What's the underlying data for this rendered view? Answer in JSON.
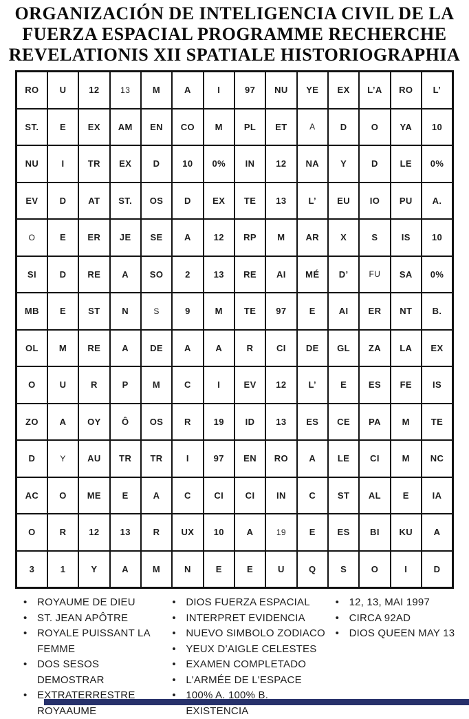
{
  "title": {
    "lines": [
      "ORGANIZACIÓN DE INTELIGENCIA CIVIL DE LA",
      "FUERZA ESPACIAL PROGRAMME RECHERCHE",
      "REVELATIONIS XII SPATIALE HISTORIOGRAPHIA"
    ]
  },
  "grid": {
    "rows": [
      [
        "RO",
        "U",
        "12",
        "13",
        "M",
        "A",
        "I",
        "97",
        "NU",
        "YE",
        "EX",
        "L’A",
        "RO",
        "L’"
      ],
      [
        "ST.",
        "E",
        "EX",
        "AM",
        "EN",
        "CO",
        "M",
        "PL",
        "ET",
        "A",
        "D",
        "O",
        "YA",
        "10"
      ],
      [
        "NU",
        "I",
        "TR",
        "EX",
        "D",
        "10",
        "0%",
        "IN",
        "12",
        "NA",
        "Y",
        "D",
        "LE",
        "0%"
      ],
      [
        "EV",
        "D",
        "AT",
        "ST.",
        "OS",
        "D",
        "EX",
        "TE",
        "13",
        "L’",
        "EU",
        "IO",
        "PU",
        "A."
      ],
      [
        "O",
        "E",
        "ER",
        "JE",
        "SE",
        "A",
        "12",
        "RP",
        "M",
        "AR",
        "X",
        "S",
        "IS",
        "10"
      ],
      [
        "SI",
        "D",
        "RE",
        "A",
        "SO",
        "2",
        "13",
        "RE",
        "AI",
        "MÉ",
        "D’",
        "FU",
        "SA",
        "0%"
      ],
      [
        "MB",
        "E",
        "ST",
        "N",
        "S",
        "9",
        "M",
        "TE",
        "97",
        "E",
        "AI",
        "ER",
        "NT",
        "B."
      ],
      [
        "OL",
        "M",
        "RE",
        "A",
        "DE",
        "A",
        "A",
        "R",
        "CI",
        "DE",
        "GL",
        "ZA",
        "LA",
        "EX"
      ],
      [
        "O",
        "U",
        "R",
        "P",
        "M",
        "C",
        "I",
        "EV",
        "12",
        "L’",
        "E",
        "ES",
        "FE",
        "IS"
      ],
      [
        "ZO",
        "A",
        "OY",
        "Ô",
        "OS",
        "R",
        "19",
        "ID",
        "13",
        "ES",
        "CE",
        "PA",
        "M",
        "TE"
      ],
      [
        "D",
        "Y",
        "AU",
        "TR",
        "TR",
        "I",
        "97",
        "EN",
        "RO",
        "A",
        "LE",
        "CI",
        "M",
        "NC"
      ],
      [
        "AC",
        "O",
        "ME",
        "E",
        "A",
        "C",
        "CI",
        "CI",
        "IN",
        "C",
        "ST",
        "AL",
        "E",
        "IA"
      ],
      [
        "O",
        "R",
        "12",
        "13",
        "R",
        "UX",
        "10",
        "A",
        "19",
        "E",
        "ES",
        "BI",
        "KU",
        "A"
      ],
      [
        "3",
        "1",
        "Y",
        "A",
        "M",
        "N",
        "E",
        "E",
        "U",
        "Q",
        "S",
        "O",
        "I",
        "D"
      ]
    ],
    "light_cells": [
      [
        0,
        3
      ],
      [
        1,
        9
      ],
      [
        4,
        0
      ],
      [
        5,
        11
      ],
      [
        6,
        4
      ],
      [
        10,
        1
      ],
      [
        12,
        8
      ]
    ]
  },
  "legend": {
    "bullet_glyph": "•",
    "columns": [
      {
        "items": [
          "ROYAUME DE DIEU",
          "ST. JEAN APÔTRE",
          "ROYALE PUISSANT LA FEMME",
          "DOS SESOS DEMOSTRAR",
          "EXTRATERRESTRE ROYAAUME"
        ]
      },
      {
        "items": [
          "DIOS FUERZA ESPACIAL",
          "INTERPRET EVIDENCIA",
          "NUEVO SIMBOLO ZODIACO",
          "YEUX D’AIGLE CELESTES",
          "EXAMEN COMPLETADO",
          "L'ARMÉE DE L'ESPACE",
          "100% A. 100% B. EXISTENCIA"
        ]
      },
      {
        "items": [
          "12, 13, MAI 1997",
          "CIRCA 92AD",
          "DIOS QUEEN MAY 13"
        ]
      }
    ]
  },
  "colors": {
    "ink": "#141414",
    "grid_line": "#121212",
    "bottom_bar": "#27316b",
    "background": "#ffffff"
  }
}
